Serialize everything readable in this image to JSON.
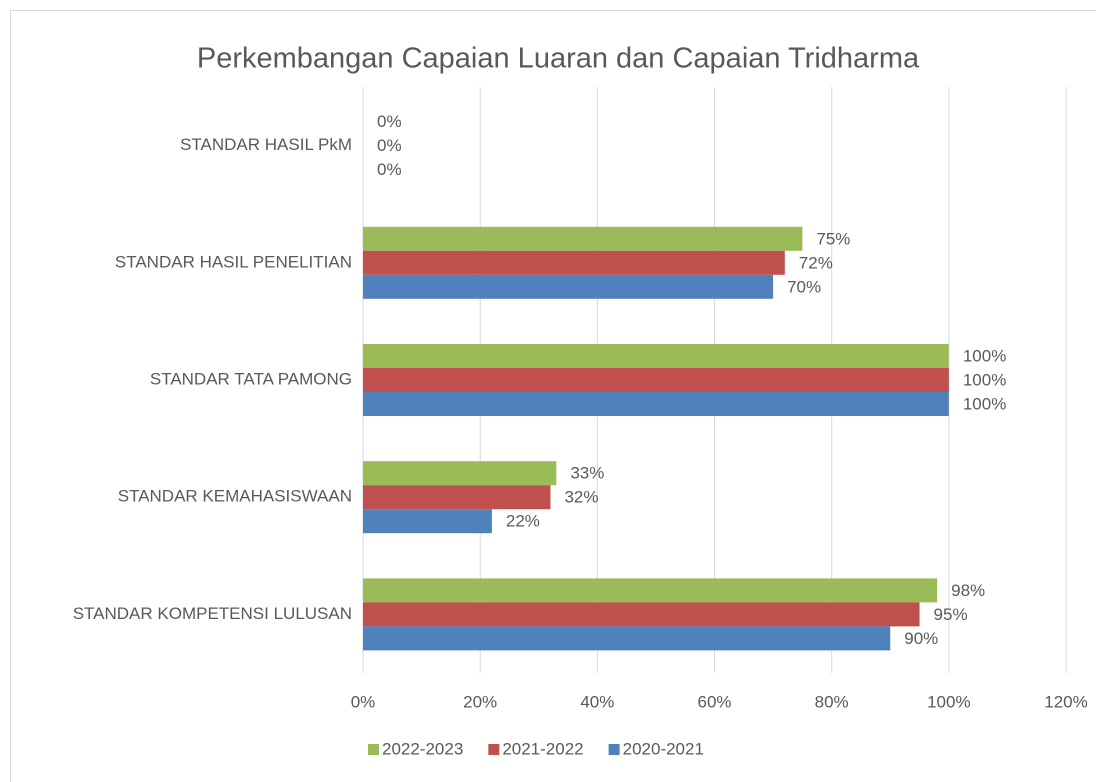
{
  "chart_data": {
    "type": "barh",
    "title": "Perkembangan Capaian Luaran dan Capaian Tridharma",
    "categories": [
      "STANDAR HASIL PkM",
      "STANDAR HASIL PENELITIAN",
      "STANDAR TATA PAMONG",
      "STANDAR KEMAHASISWAAN",
      "STANDAR KOMPETENSI LULUSAN"
    ],
    "series": [
      {
        "name": "2022-2023",
        "color": "#9bbb59",
        "values": [
          0,
          75,
          100,
          33,
          98
        ],
        "value_labels": [
          "0%",
          "75%",
          "100%",
          "33%",
          "98%"
        ]
      },
      {
        "name": "2021-2022",
        "color": "#c0504d",
        "values": [
          0,
          72,
          100,
          32,
          95
        ],
        "value_labels": [
          "0%",
          "72%",
          "100%",
          "32%",
          "95%"
        ]
      },
      {
        "name": "2020-2021",
        "color": "#4f81bd",
        "values": [
          0,
          70,
          100,
          22,
          90
        ],
        "value_labels": [
          "0%",
          "70%",
          "100%",
          "22%",
          "90%"
        ]
      }
    ],
    "xlim": [
      0,
      120
    ],
    "xticks": [
      {
        "value": 0,
        "label": "0%"
      },
      {
        "value": 20,
        "label": "20%"
      },
      {
        "value": 40,
        "label": "40%"
      },
      {
        "value": 60,
        "label": "60%"
      },
      {
        "value": 80,
        "label": "80%"
      },
      {
        "value": 100,
        "label": "100%"
      },
      {
        "value": 120,
        "label": "120%"
      }
    ],
    "grid": true,
    "legend": "bottom"
  }
}
